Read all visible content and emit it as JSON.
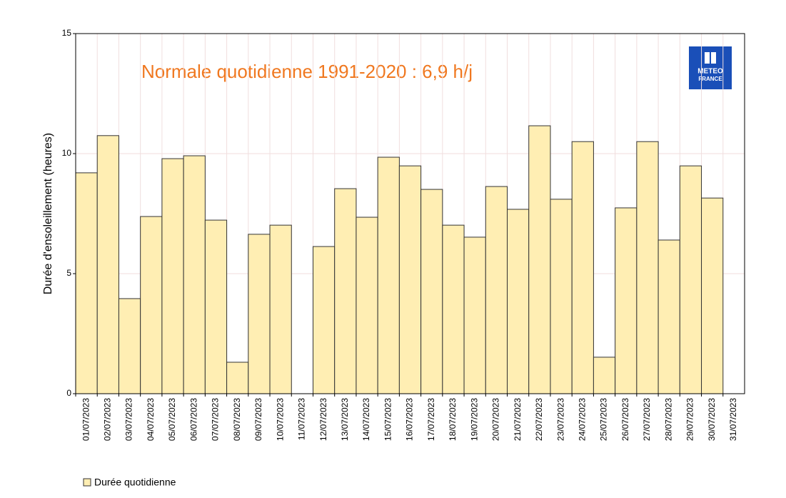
{
  "chart_data": {
    "type": "bar",
    "y_label": "Durée d'ensoleillement (heures)",
    "annotation": "Normale quotidienne 1991-2020 : 6,9 h/j",
    "logo_text": [
      "METEO",
      "FRANCE"
    ],
    "categories": [
      "01/07/2023",
      "02/07/2023",
      "03/07/2023",
      "04/07/2023",
      "05/07/2023",
      "06/07/2023",
      "07/07/2023",
      "08/07/2023",
      "09/07/2023",
      "10/07/2023",
      "11/07/2023",
      "12/07/2023",
      "13/07/2023",
      "14/07/2023",
      "15/07/2023",
      "16/07/2023",
      "17/07/2023",
      "18/07/2023",
      "19/07/2023",
      "20/07/2023",
      "21/07/2023",
      "22/07/2023",
      "23/07/2023",
      "24/07/2023",
      "25/07/2023",
      "26/07/2023",
      "27/07/2023",
      "28/07/2023",
      "29/07/2023",
      "30/07/2023",
      "31/07/2023"
    ],
    "series": [
      {
        "name": "Durée quotidienne",
        "color": "#ffeeb3",
        "values": [
          9.2,
          10.75,
          3.96,
          7.38,
          9.79,
          9.91,
          7.23,
          1.31,
          6.64,
          7.02,
          null,
          6.13,
          8.54,
          7.35,
          9.85,
          9.49,
          8.51,
          7.02,
          6.52,
          8.63,
          7.68,
          11.16,
          8.1,
          10.5,
          1.52,
          7.74,
          10.5,
          6.4,
          9.49,
          8.15,
          null
        ]
      }
    ],
    "ylim": [
      0,
      15
    ],
    "yticks": [
      0,
      5,
      10,
      15
    ],
    "grid": true
  }
}
